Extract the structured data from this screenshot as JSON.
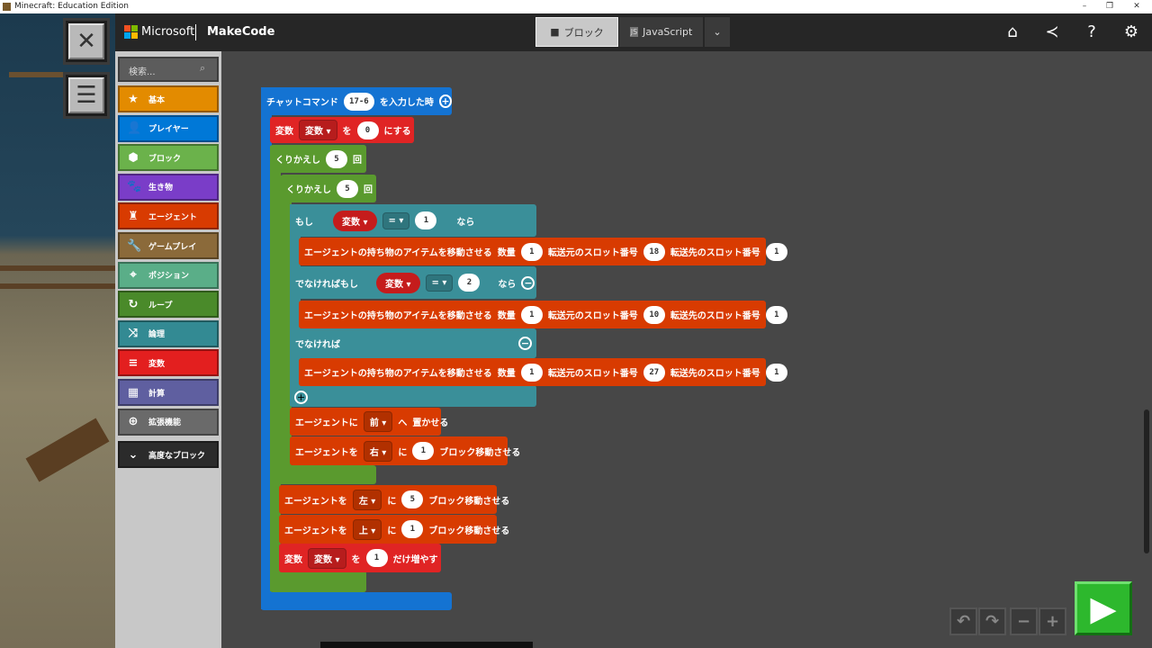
{
  "window": {
    "title": "Minecraft: Education Edition",
    "min": "–",
    "restore": "❐",
    "close": "✕"
  },
  "game_buttons": {
    "close_glyph": "✕",
    "menu_glyph": "☰"
  },
  "header": {
    "brand": "Microsoft",
    "product": "MakeCode",
    "tab_blocks": "ブロック",
    "tab_js": "JavaScript",
    "dropdown": "⌄"
  },
  "search": {
    "placeholder": "検索..."
  },
  "categories": [
    {
      "label": "基本",
      "icon": "★",
      "color": "#e38b00"
    },
    {
      "label": "プレイヤー",
      "icon": "👤",
      "color": "#0078d7"
    },
    {
      "label": "ブロック",
      "icon": "⬢",
      "color": "#6bb24b"
    },
    {
      "label": "生き物",
      "icon": "🐾",
      "color": "#7a3dc8"
    },
    {
      "label": "エージェント",
      "icon": "♜",
      "color": "#d83b01"
    },
    {
      "label": "ゲームプレイ",
      "icon": "🔧",
      "color": "#8b6a3a"
    },
    {
      "label": "ポジション",
      "icon": "⌖",
      "color": "#5aae88"
    },
    {
      "label": "ループ",
      "icon": "↻",
      "color": "#4a8a2a"
    },
    {
      "label": "論理",
      "icon": "⤨",
      "color": "#338a93"
    },
    {
      "label": "変数",
      "icon": "≡",
      "color": "#e31f1f"
    },
    {
      "label": "計算",
      "icon": "▦",
      "color": "#5f5fa0"
    },
    {
      "label": "拡張機能",
      "icon": "⊕",
      "color": "#6a6a6a"
    },
    {
      "label": "高度なブロック",
      "icon": "⌄",
      "color": "#2b2b2b"
    }
  ],
  "blocks": {
    "hat": {
      "prefix": "チャットコマンド",
      "command": "17-6",
      "suffix": "を入力した時"
    },
    "setvar": {
      "a": "変数",
      "var": "変数",
      "b": "を",
      "value": "0",
      "c": "にする"
    },
    "repeat1": {
      "a": "くりかえし",
      "n": "5",
      "b": "回"
    },
    "repeat2": {
      "a": "くりかえし",
      "n": "5",
      "b": "回"
    },
    "if": {
      "a": "もし",
      "var": "変数",
      "op": "=",
      "value": "1",
      "b": "なら"
    },
    "elseif": {
      "a": "でなければもし",
      "var": "変数",
      "op": "=",
      "value": "2",
      "b": "なら"
    },
    "else": {
      "a": "でなければ"
    },
    "transfers": [
      {
        "a": "エージェントの持ち物のアイテムを移動させる",
        "b": "数量",
        "qty": "1",
        "c": "転送元のスロット番号",
        "src": "18",
        "d": "転送先のスロット番号",
        "dst": "1"
      },
      {
        "a": "エージェントの持ち物のアイテムを移動させる",
        "b": "数量",
        "qty": "1",
        "c": "転送元のスロット番号",
        "src": "10",
        "d": "転送先のスロット番号",
        "dst": "1"
      },
      {
        "a": "エージェントの持ち物のアイテムを移動させる",
        "b": "数量",
        "qty": "1",
        "c": "転送元のスロット番号",
        "src": "27",
        "d": "転送先のスロット番号",
        "dst": "1"
      }
    ],
    "place": {
      "a": "エージェントに",
      "dir": "前",
      "b": "へ",
      "c": "置かせる"
    },
    "moves": [
      {
        "a": "エージェントを",
        "dir": "右",
        "b": "に",
        "n": "1",
        "c": "ブロック移動させる"
      },
      {
        "a": "エージェントを",
        "dir": "左",
        "b": "に",
        "n": "5",
        "c": "ブロック移動させる"
      },
      {
        "a": "エージェントを",
        "dir": "上",
        "b": "に",
        "n": "1",
        "c": "ブロック移動させる"
      }
    ],
    "changevar": {
      "a": "変数",
      "var": "変数",
      "b": "を",
      "value": "1",
      "c": "だけ増やす"
    }
  },
  "controls": {
    "undo": "↶",
    "redo": "↷",
    "zoom_out": "−",
    "zoom_in": "+",
    "run": "▶"
  }
}
